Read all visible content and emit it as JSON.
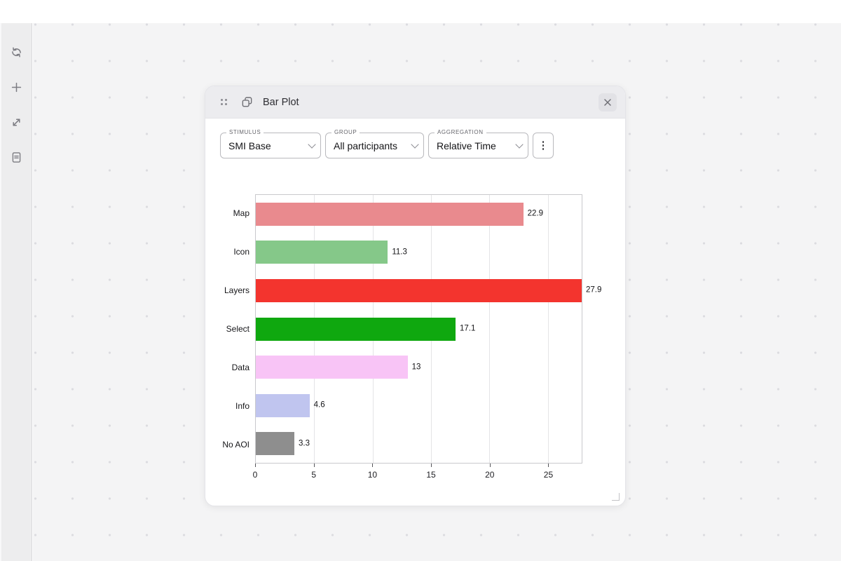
{
  "window": {
    "title": "Bar Plot"
  },
  "sidebar": {
    "items": [
      {
        "name": "refresh"
      },
      {
        "name": "add"
      },
      {
        "name": "expand"
      },
      {
        "name": "report"
      }
    ]
  },
  "controls": {
    "selects": [
      {
        "label": "STIMULUS",
        "value": "SMI Base"
      },
      {
        "label": "GROUP",
        "value": "All participants"
      },
      {
        "label": "AGGREGATION",
        "value": "Relative Time"
      }
    ]
  },
  "chart_data": {
    "type": "bar",
    "orientation": "horizontal",
    "title": "",
    "xlabel": "",
    "ylabel": "",
    "categories": [
      "Map",
      "Icon",
      "Layers",
      "Select",
      "Data",
      "Info",
      "No AOI"
    ],
    "values": [
      22.9,
      11.3,
      27.9,
      17.1,
      13,
      4.6,
      3.3
    ],
    "value_labels": [
      "22.9",
      "11.3",
      "27.9",
      "17.1",
      "13",
      "4.6",
      "3.3"
    ],
    "bar_colors": [
      "#e98a8e",
      "#85c889",
      "#f3342e",
      "#0fa80f",
      "#f8c4f6",
      "#c0c5ef",
      "#8e8e8e"
    ],
    "xlim": [
      0,
      27.9
    ],
    "x_ticks": [
      0,
      5,
      10,
      15,
      20,
      25
    ],
    "grid": true,
    "legend": false
  },
  "colors": {
    "canvas_bg": "#f4f4f5",
    "canvas_dot": "#dcdce0",
    "panel_header_bg": "#ececef",
    "panel_border": "#e4e4e8",
    "plot_border": "#c9c9cc",
    "gridline": "#e4e4e6"
  }
}
